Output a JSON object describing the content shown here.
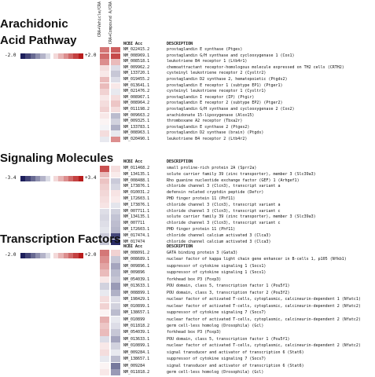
{
  "columns": [
    "CRA+Vehicle/CRA",
    "CRA+Compound A/CRA"
  ],
  "headers": {
    "acc": "NCBI Acc",
    "desc": "DESCRIPTION"
  },
  "colors": {
    "neg": "#1d1f5c",
    "pos": "#b81c1c",
    "zero": "#ffffff"
  },
  "chart_data": [
    {
      "type": "heatmap",
      "title": "Arachidonic Acid Pathway",
      "legend_min": "-2.0",
      "legend_max": "+2.0",
      "vmin": -2.0,
      "vmax": 2.0,
      "rows": [
        {
          "acc": "NM_022415.2",
          "desc": "prostaglandin E synthase (Ptges)",
          "values": [
            1.2,
            1.4
          ]
        },
        {
          "acc": "NM_008969.1",
          "desc": "prostaglandin G/H synthase and cyclooxygenase 1 (Cox1)",
          "values": [
            1.3,
            1.6
          ]
        },
        {
          "acc": "NM_008518.1",
          "desc": "leukotriene B4 receptor 1 (Ltb4r1)",
          "values": [
            1.0,
            0.6
          ]
        },
        {
          "acc": "NM_009962.2",
          "desc": "chemoattractant receptor-homologous molecule expressed on TH2 cells (CRTH2)",
          "values": [
            0.3,
            -0.3
          ]
        },
        {
          "acc": "NM_133720.1",
          "desc": "cysteinyl leukotriene receptor 2 (Cysltr2)",
          "values": [
            0.2,
            -0.5
          ]
        },
        {
          "acc": "NM_019455.2",
          "desc": "prostaglandin D2 synthase 2, hematopoietic (Ptgds2)",
          "values": [
            0.6,
            -0.3
          ]
        },
        {
          "acc": "NM_013641.1",
          "desc": "prostaglandin E receptor 1 (subtype EP1) (Ptger1)",
          "values": [
            0.6,
            0.2
          ]
        },
        {
          "acc": "NM_021476.2",
          "desc": "cysteinyl leukotriene receptor 1 (Cysltr1)",
          "values": [
            0.4,
            -0.2
          ]
        },
        {
          "acc": "NM_008967.1",
          "desc": "prostaglandin I receptor (IP) (Ptgir)",
          "values": [
            0.2,
            0.3
          ]
        },
        {
          "acc": "NM_008964.2",
          "desc": "prostaglandin E receptor 2 (subtype EP2) (Ptger2)",
          "values": [
            0.3,
            0.5
          ]
        },
        {
          "acc": "NM_011198.2",
          "desc": "prostaglandin G/H synthase and cyclooxygenase 2 (Cox2)",
          "values": [
            0.4,
            0.3
          ]
        },
        {
          "acc": "NM_009663.2",
          "desc": "arachidonate 15-lipoxygenase (Alox15)",
          "values": [
            0.2,
            -0.6
          ]
        },
        {
          "acc": "NM_009325.1",
          "desc": "thromboxane A2 receptor (Tbxa2r)",
          "values": [
            0.1,
            -0.4
          ]
        },
        {
          "acc": "NM_133783.1",
          "desc": "prostaglandin E synthase 2 (Ptges2)",
          "values": [
            -0.1,
            -0.7
          ]
        },
        {
          "acc": "NM_008963.1",
          "desc": "prostaglandin D2 synthase (brain) (Ptgds)",
          "values": [
            0.3,
            -0.2
          ]
        },
        {
          "acc": "NM_020490.1",
          "desc": "leukotriene B4 receptor 2 (Ltb4r2)",
          "values": [
            -0.2,
            1.0
          ]
        }
      ]
    },
    {
      "type": "heatmap",
      "title": "Signaling Molecules",
      "legend_min": "-3.4",
      "legend_max": "+3.4",
      "vmin": -3.4,
      "vmax": 3.4,
      "rows": [
        {
          "acc": "NM_011468.2",
          "desc": "small proline-rich protein 2A (Sprr2a)",
          "values": [
            2.6,
            0.5
          ]
        },
        {
          "acc": "NM_134135.1",
          "desc": "solute carrier family 39 (zinc transporter), member 3 (Slc39a3)",
          "values": [
            1.0,
            0.3
          ]
        },
        {
          "acc": "NM_008488.1",
          "desc": "Rho guanine nucleotide exchange factor (GEF) 1 (Arhgef1)",
          "values": [
            0.9,
            -0.8
          ]
        },
        {
          "acc": "NM_173876.1",
          "desc": "chloride channel 3 (Clcn3), transcript variant a",
          "values": [
            0.7,
            -0.6
          ]
        },
        {
          "acc": "NM_010031.2",
          "desc": "defensin related cryptdin peptide (Defcr)",
          "values": [
            0.6,
            0.4
          ]
        },
        {
          "acc": "NM_172603.1",
          "desc": "PHD finger protein 11 (Phf11)",
          "values": [
            0.5,
            0.3
          ]
        },
        {
          "acc": "NM_173876.1",
          "desc": "chloride channel 3 (Clcn3), transcript variant a",
          "values": [
            0.4,
            -0.4
          ]
        },
        {
          "acc": "NM_007711.1",
          "desc": "chloride channel 3 (Clcn3), transcript variant c",
          "values": [
            -0.5,
            -0.7
          ]
        },
        {
          "acc": "NM_134135.1",
          "desc": "solute carrier family 39 (zinc transporter), member 3 (Slc39a3)",
          "values": [
            -0.6,
            -0.9
          ]
        },
        {
          "acc": "NM_007711",
          "desc": "chloride channel 3 (Clcn3), transcript variant c",
          "values": [
            -0.5,
            -1.0
          ]
        },
        {
          "acc": "NM_172603.1",
          "desc": "PHD finger protein 11 (Phf11)",
          "values": [
            -0.4,
            -1.1
          ]
        },
        {
          "acc": "NM_017474.1",
          "desc": "chloride channel calcium activated 3 (Clca3)",
          "values": [
            -0.8,
            -2.8
          ]
        },
        {
          "acc": "NM_017474",
          "desc": "chloride channel calcium activated 3 (Clca3)",
          "values": [
            -0.9,
            -3.2
          ]
        }
      ]
    },
    {
      "type": "heatmap",
      "title": "Transcription Factors",
      "legend_min": "-2.0",
      "legend_max": "+2.0",
      "vmin": -2.0,
      "vmax": 2.0,
      "rows": [
        {
          "acc": "NM_008091.2",
          "desc": "GATA binding protein 3 (Gata3)",
          "values": [
            1.2,
            0.4
          ]
        },
        {
          "acc": "NM_008689.1",
          "desc": "nuclear factor of kappa light chain gene enhancer in B-cells 1, p105 (Nfkb1)",
          "values": [
            1.0,
            -0.5
          ]
        },
        {
          "acc": "NM_009896.1",
          "desc": "suppressor of cytokine signaling 1 (Socs1)",
          "values": [
            0.8,
            -0.8
          ]
        },
        {
          "acc": "NM_009896",
          "desc": "suppressor of cytokine signaling 1 (Socs1)",
          "values": [
            0.6,
            -0.6
          ]
        },
        {
          "acc": "NM_054039.1",
          "desc": "forkhead box P3 (Foxp3)",
          "values": [
            0.2,
            -0.5
          ]
        },
        {
          "acc": "NM_013633.1",
          "desc": "POU domain, class 5, transcription factor 1 (Pou5f1)",
          "values": [
            -0.4,
            -0.9
          ]
        },
        {
          "acc": "NM_008899.1",
          "desc": "POU domain, class 3, transcription factor 2 (Pou3f2)",
          "values": [
            -0.2,
            -0.7
          ]
        },
        {
          "acc": "NM_198429.1",
          "desc": "nuclear factor of activated T-cells, cytoplasmic, calcineurin-dependent 1 (Nfatc1)",
          "values": [
            0.3,
            -0.3
          ]
        },
        {
          "acc": "NM_010899.1",
          "desc": "nuclear factor of activated T-cells, cytoplasmic, calcineurin-dependent 2 (Nfatc2)",
          "values": [
            0.4,
            -0.4
          ]
        },
        {
          "acc": "NM_138657.1",
          "desc": "suppressor of cytokine signaling 7 (Socs7)",
          "values": [
            0.1,
            -0.6
          ]
        },
        {
          "acc": "NM_010899",
          "desc": "nuclear factor of activated T-cells, cytoplasmic, calcineurin-dependent 2 (Nfatc2)",
          "values": [
            0.7,
            -0.2
          ]
        },
        {
          "acc": "NM_011818.2",
          "desc": "germ cell-less homolog (Drosophila) (Gcl)",
          "values": [
            0.5,
            -0.3
          ]
        },
        {
          "acc": "NM_054039.1",
          "desc": "forkhead box P3 (Foxp3)",
          "values": [
            0.6,
            -0.5
          ]
        },
        {
          "acc": "NM_013633.1",
          "desc": "POU domain, class 5, transcription factor 1 (Pou5f1)",
          "values": [
            -0.3,
            -0.8
          ]
        },
        {
          "acc": "NM_010899.1",
          "desc": "nuclear factor of activated T-cells, cytoplasmic, calcineurin-dependent 2 (Nfatc2)",
          "values": [
            0.2,
            -0.4
          ]
        },
        {
          "acc": "NM_009284.1",
          "desc": "signal transducer and activator of transcription 6 (Stat6)",
          "values": [
            0.3,
            -0.2
          ]
        },
        {
          "acc": "NM_138657.1",
          "desc": "suppressor of cytokine signaling 7 (Socs7)",
          "values": [
            -0.2,
            -0.6
          ]
        },
        {
          "acc": "NM_009284",
          "desc": "signal transducer and activator of transcription 6 (Stat6)",
          "values": [
            0.1,
            -1.2
          ]
        },
        {
          "acc": "NM_011818.2",
          "desc": "germ cell-less homolog (Drosophila) (Gcl)",
          "values": [
            0.2,
            -0.9
          ]
        }
      ]
    }
  ]
}
